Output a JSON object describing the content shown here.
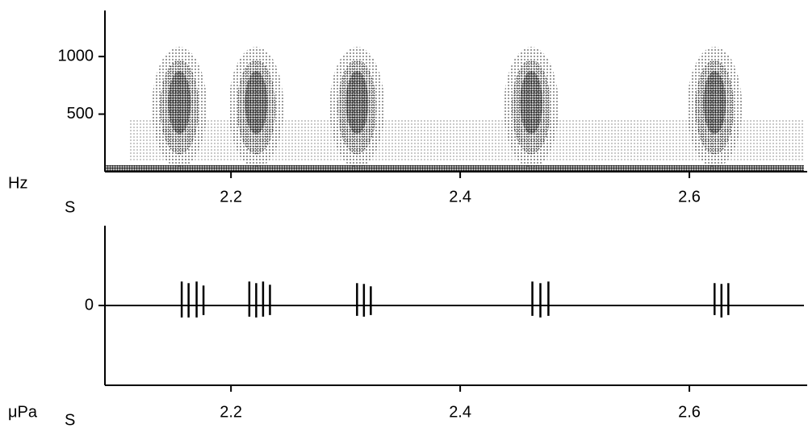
{
  "chart_data": [
    {
      "type": "spectrogram",
      "x": [
        2.155,
        2.222,
        2.31,
        2.462,
        2.622
      ],
      "xlim": [
        2.09,
        2.7
      ],
      "xticks": [
        2.2,
        2.4,
        2.6
      ],
      "ylim": [
        0,
        1400
      ],
      "yticks": [
        500,
        1000
      ],
      "y_label": "Hz",
      "x_label": "S",
      "color": "#000000"
    },
    {
      "type": "waveform",
      "x": [
        2.157,
        2.163,
        2.17,
        2.176,
        2.216,
        2.222,
        2.228,
        2.234,
        2.31,
        2.316,
        2.322,
        2.463,
        2.47,
        2.477,
        2.622,
        2.628,
        2.634
      ],
      "values": [
        0.3,
        0.28,
        0.3,
        0.25,
        0.3,
        0.28,
        0.3,
        0.26,
        0.28,
        0.27,
        0.24,
        0.3,
        0.28,
        0.3,
        0.28,
        0.27,
        0.28
      ],
      "troughs": [
        -0.15,
        -0.15,
        -0.15,
        -0.12,
        -0.14,
        -0.15,
        -0.14,
        -0.12,
        -0.13,
        -0.14,
        -0.12,
        -0.13,
        -0.15,
        -0.13,
        -0.12,
        -0.15,
        -0.12
      ],
      "xlim": [
        2.09,
        2.7
      ],
      "xticks": [
        2.2,
        2.4,
        2.6
      ],
      "ylim": [
        -1,
        1
      ],
      "yticks": [
        0
      ],
      "y_label": "μPa",
      "x_label": "S",
      "color": "#000000"
    }
  ]
}
